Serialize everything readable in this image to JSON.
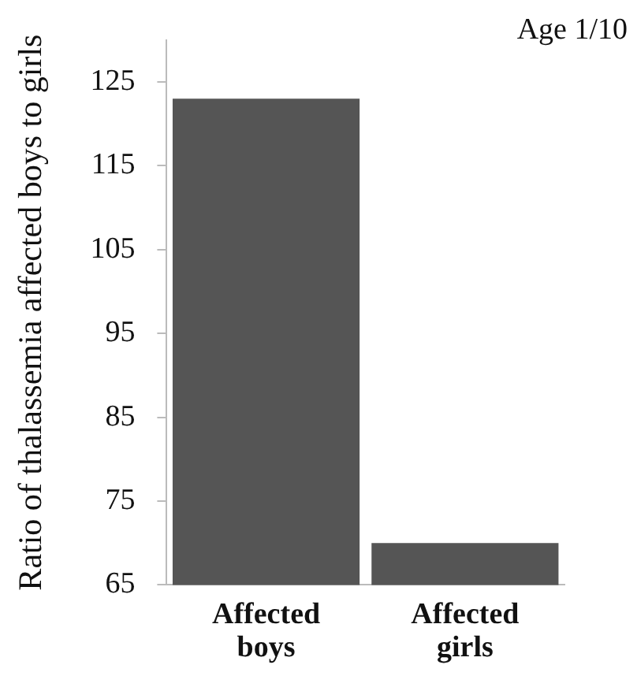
{
  "chart_data": {
    "type": "bar",
    "ylabel": "Ratio of thalassemia affected boys to girls",
    "annotations": [
      "Age 1/10"
    ],
    "categories": [
      "Affected boys",
      "Affected girls"
    ],
    "values": [
      123,
      70
    ],
    "color": "#555555",
    "ylim": [
      65,
      130
    ],
    "yticks": [
      65,
      75,
      85,
      95,
      105,
      115,
      125
    ],
    "grid": false,
    "legend": false
  }
}
